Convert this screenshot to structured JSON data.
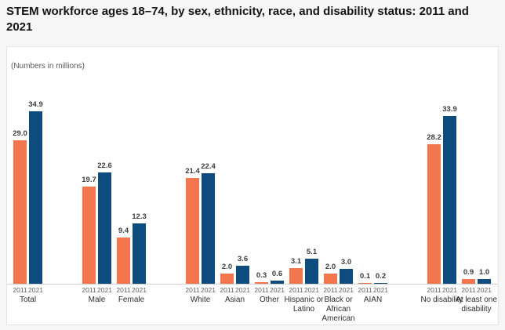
{
  "page": {
    "title": "STEM workforce ages 18–74, by sex, ethnicity, race, and disability status: 2011 and 2021"
  },
  "chart_data": {
    "type": "bar",
    "title": "STEM workforce ages 18–74, by sex, ethnicity, race, and disability status: 2011 and 2021",
    "subtitle": "(Numbers in millions)",
    "unit": "millions",
    "legend_position": "none",
    "grid": false,
    "ylim": [
      0,
      36
    ],
    "series": [
      {
        "name": "2011",
        "color": "#F3764E"
      },
      {
        "name": "2021",
        "color": "#0E4B7E"
      }
    ],
    "sections": [
      {
        "groups": [
          {
            "label": "Total",
            "values": [
              29.0,
              34.9
            ]
          }
        ]
      },
      {
        "groups": [
          {
            "label": "Male",
            "values": [
              19.7,
              22.6
            ]
          },
          {
            "label": "Female",
            "values": [
              9.4,
              12.3
            ]
          }
        ]
      },
      {
        "groups": [
          {
            "label": "White",
            "values": [
              21.4,
              22.4
            ]
          },
          {
            "label": "Asian",
            "values": [
              2.0,
              3.6
            ]
          },
          {
            "label": "Other",
            "values": [
              0.3,
              0.6
            ]
          },
          {
            "label": "Hispanic or Latino",
            "values": [
              3.1,
              5.1
            ]
          },
          {
            "label": "Black or African American",
            "values": [
              2.0,
              3.0
            ]
          },
          {
            "label": "AIAN",
            "values": [
              0.1,
              0.2
            ]
          }
        ]
      },
      {
        "groups": [
          {
            "label": "No disability",
            "values": [
              28.2,
              33.9
            ]
          },
          {
            "label": "At least one disability",
            "values": [
              0.9,
              1.0
            ]
          }
        ]
      }
    ]
  }
}
